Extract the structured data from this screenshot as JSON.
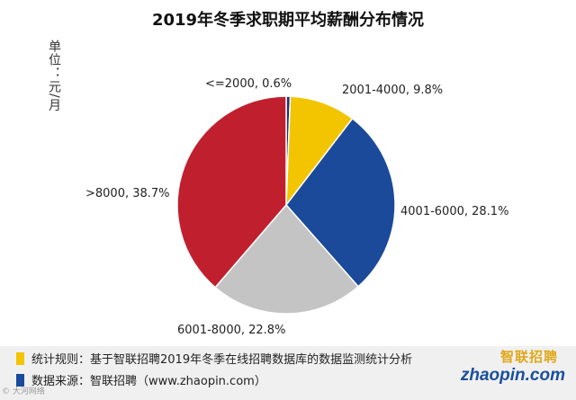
{
  "colors": {
    "yellow": "#f2c500",
    "blue": "#1a4a99",
    "gray": "#c4c4c4",
    "red": "#c0202e",
    "navy": "#1c2f70"
  },
  "chart_data": {
    "type": "pie",
    "title": "2019年冬季求职期平均薪酬分布情况",
    "unit_label": "单位：元/月",
    "slices": [
      {
        "label": "<=2000, 0.6%",
        "category": "<=2000",
        "value": 0.6,
        "color": "#1c2f70"
      },
      {
        "label": "2001-4000, 9.8%",
        "category": "2001-4000",
        "value": 9.8,
        "color": "#f2c500"
      },
      {
        "label": "4001-6000, 28.1%",
        "category": "4001-6000",
        "value": 28.1,
        "color": "#1a4a99"
      },
      {
        "label": "6001-8000, 22.8%",
        "category": "6001-8000",
        "value": 22.8,
        "color": "#c4c4c4"
      },
      {
        "label": ">8000, 38.7%",
        "category": ">8000",
        "value": 38.7,
        "color": "#c0202e"
      }
    ]
  },
  "notes": {
    "rule": "统计规则：基于智联招聘2019年冬季在线招聘数据库的数据监测统计分析",
    "source": "数据来源：智联招聘（www.zhaopin.com）"
  },
  "brand": {
    "cn": "智联招聘",
    "en": "zhaopin.com"
  },
  "watermark": "© 大河网络"
}
